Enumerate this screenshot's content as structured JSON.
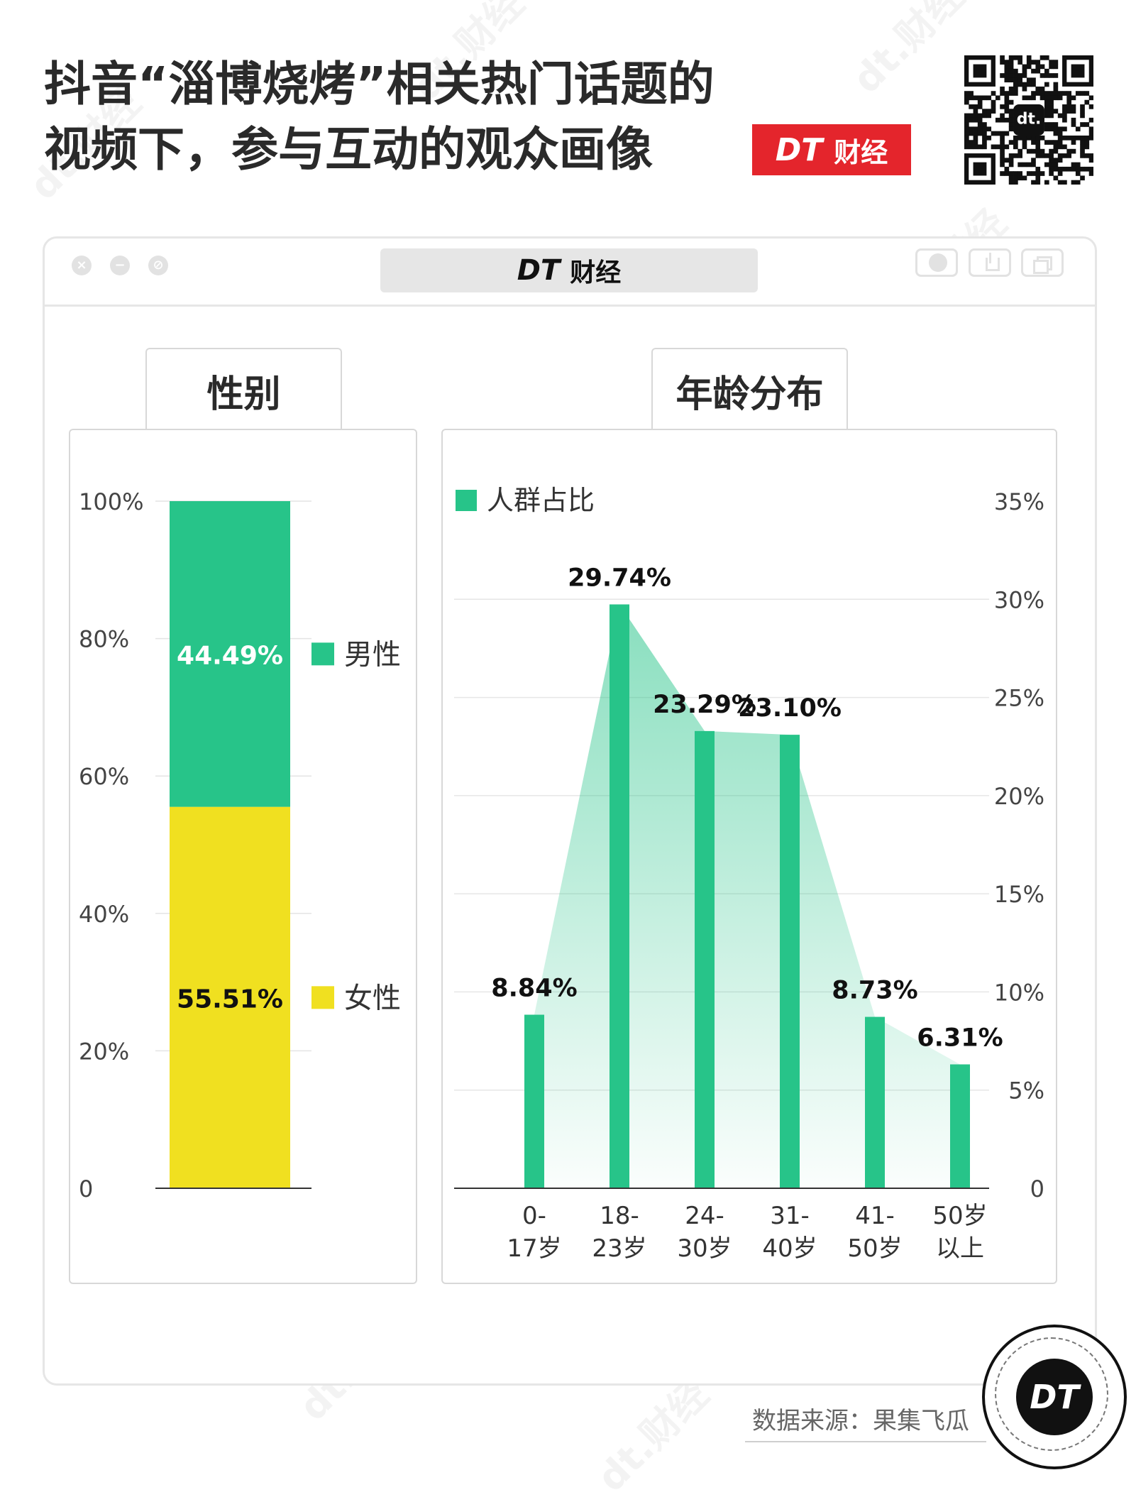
{
  "header": {
    "title_line1": "抖音“淄博烧烤”相关热门话题的",
    "title_line2": "视频下，参与互动的观众画像",
    "brand_dt": "DT",
    "brand_cj": "财经",
    "qr_label": "dt."
  },
  "window": {
    "title_dt": "DT",
    "title_cj": "财经",
    "close_glyph": "×",
    "min_glyph": "−",
    "other_glyph": "⊘"
  },
  "gender_panel": {
    "tab": "性别"
  },
  "age_panel": {
    "tab": "年龄分布"
  },
  "footer": {
    "source": "数据来源：果集飞瓜",
    "badge": "DT"
  },
  "watermark": "dt.财经",
  "colors": {
    "green": "#27c489",
    "yellow": "#f0e020",
    "red": "#e4252c"
  },
  "chart_data": [
    {
      "type": "bar",
      "stacked": true,
      "ylim": [
        0,
        100
      ],
      "yticks": [
        "0",
        "20%",
        "40%",
        "60%",
        "80%",
        "100%"
      ],
      "series": [
        {
          "name": "女性",
          "value": 55.51,
          "label": "55.51%",
          "color": "#f0e020"
        },
        {
          "name": "男性",
          "value": 44.49,
          "label": "44.49%",
          "color": "#27c489"
        }
      ]
    },
    {
      "type": "bar",
      "legend": "人群占比",
      "legend_position": "top-left",
      "ylim": [
        0,
        35
      ],
      "yticks": [
        "0",
        "5%",
        "10%",
        "15%",
        "20%",
        "25%",
        "30%",
        "35%"
      ],
      "y_axis_side": "right",
      "grid": true,
      "categories": [
        [
          "0-",
          "17岁"
        ],
        [
          "18-",
          "23岁"
        ],
        [
          "24-",
          "30岁"
        ],
        [
          "31-",
          "40岁"
        ],
        [
          "41-",
          "50岁"
        ],
        [
          "50岁",
          "以上"
        ]
      ],
      "values": [
        8.84,
        29.74,
        23.29,
        23.1,
        8.73,
        6.31
      ],
      "labels": [
        "8.84%",
        "29.74%",
        "23.29%",
        "23.10%",
        "8.73%",
        "6.31%"
      ],
      "color": "#27c489"
    }
  ]
}
